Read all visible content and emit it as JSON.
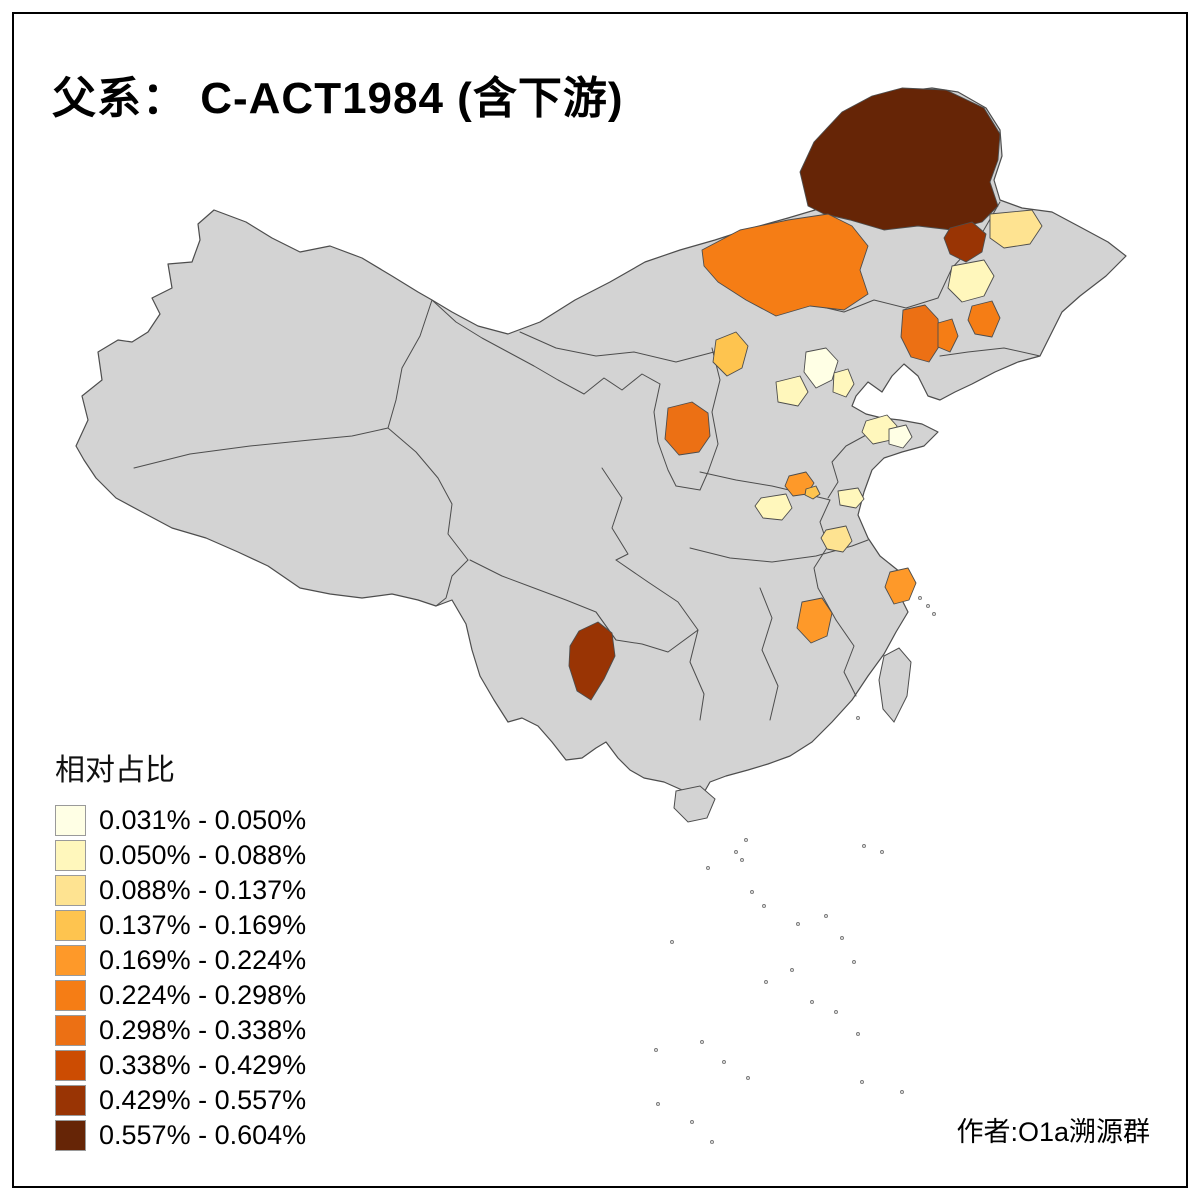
{
  "title": "父系： C-ACT1984 (含下游)",
  "legend": {
    "title": "相对占比",
    "classes": [
      {
        "label": "0.031% - 0.050%",
        "color": "#FFFFE5"
      },
      {
        "label": "0.050% - 0.088%",
        "color": "#FFF7BC"
      },
      {
        "label": "0.088% - 0.137%",
        "color": "#FEE391"
      },
      {
        "label": "0.137% - 0.169%",
        "color": "#FEC44F"
      },
      {
        "label": "0.169% - 0.224%",
        "color": "#FE9929"
      },
      {
        "label": "0.224% - 0.298%",
        "color": "#F57D15"
      },
      {
        "label": "0.298% - 0.338%",
        "color": "#EC7014"
      },
      {
        "label": "0.338% - 0.429%",
        "color": "#CC4C02"
      },
      {
        "label": "0.429% - 0.557%",
        "color": "#993404"
      },
      {
        "label": "0.557% - 0.604%",
        "color": "#662506"
      }
    ]
  },
  "attribution": "作者:O1a溯源群",
  "map": {
    "land_color": "#d3d3d3",
    "border_color": "#4d4d4d",
    "sea_color": "#ffffff",
    "frame_color": "#000000",
    "patches": {
      "p01": 9,
      "p02": 8,
      "p03": 2,
      "p04": 1,
      "p05": 5,
      "p06": 3,
      "p07": 0,
      "p08": 1,
      "p09": 1,
      "p10": 6,
      "p11": 5,
      "p12": 5,
      "p13": 6,
      "p14": 1,
      "p15": 0,
      "p16": 4,
      "p17": 3,
      "p18": 1,
      "p19": 1,
      "p20": 2,
      "p21": 4,
      "p22": 4,
      "p23": 8
    }
  }
}
